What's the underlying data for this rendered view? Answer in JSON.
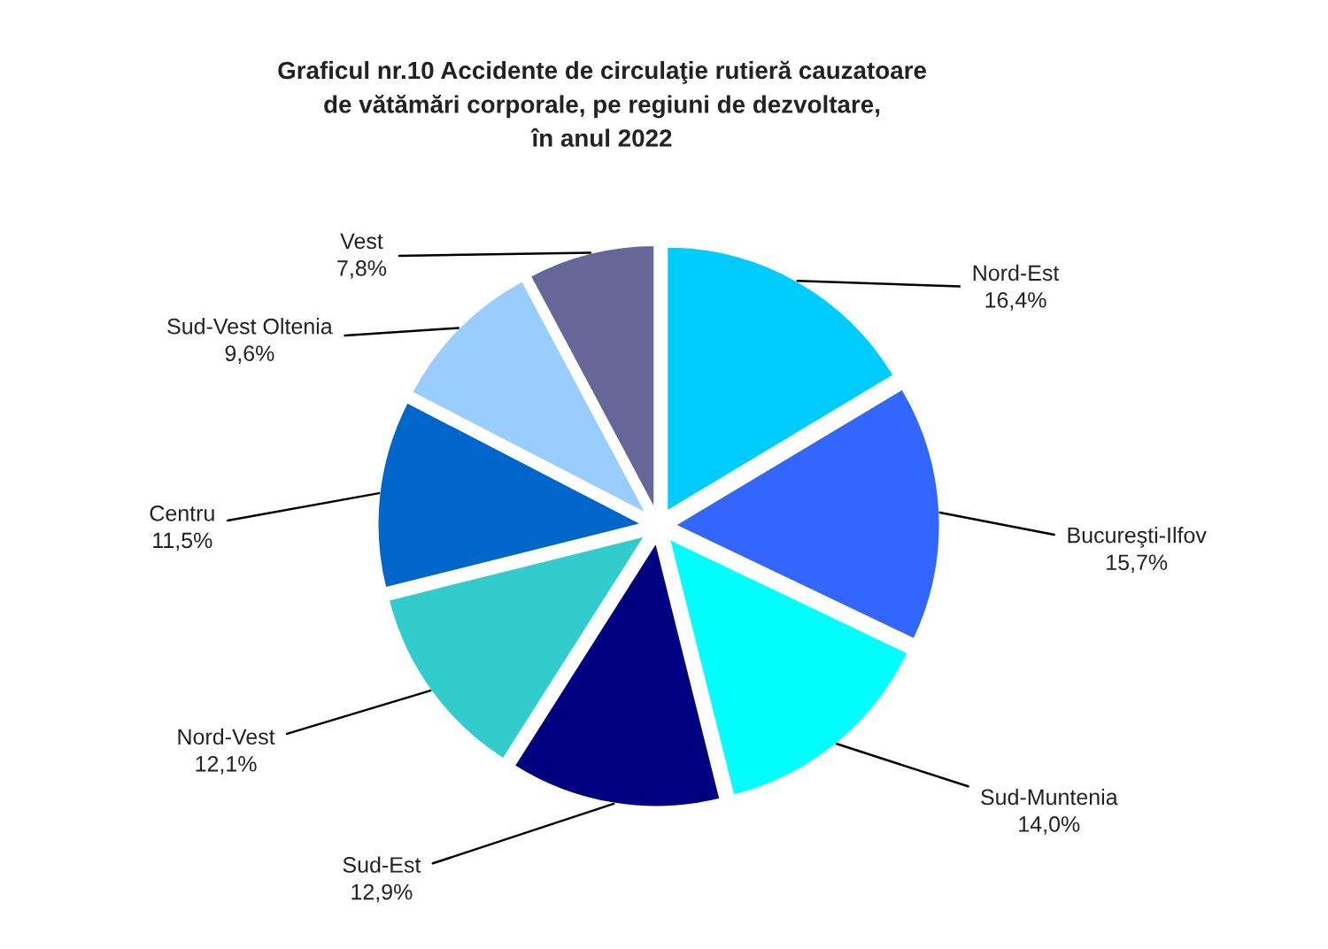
{
  "chart_data": {
    "type": "pie",
    "title": "Graficul nr.10 Accidente de circulaţie rutieră cauzatoare\nde vătămări corporale, pe regiuni de dezvoltare,\nîn anul 2022",
    "categories": [
      "Nord-Est",
      "Bucureşti-Ilfov",
      "Sud-Muntenia",
      "Sud-Est",
      "Nord-Vest",
      "Centru",
      "Sud-Vest Oltenia",
      "Vest"
    ],
    "values": [
      16.4,
      15.7,
      14.0,
      12.9,
      12.1,
      11.5,
      9.6,
      7.8
    ],
    "value_labels": [
      "16,4%",
      "15,7%",
      "14,0%",
      "12,9%",
      "12,1%",
      "11,5%",
      "9,6%",
      "7,8%"
    ],
    "colors": [
      "#00ccff",
      "#3366ff",
      "#00ffff",
      "#000080",
      "#33cccc",
      "#0066cc",
      "#99ccff",
      "#666699"
    ]
  }
}
